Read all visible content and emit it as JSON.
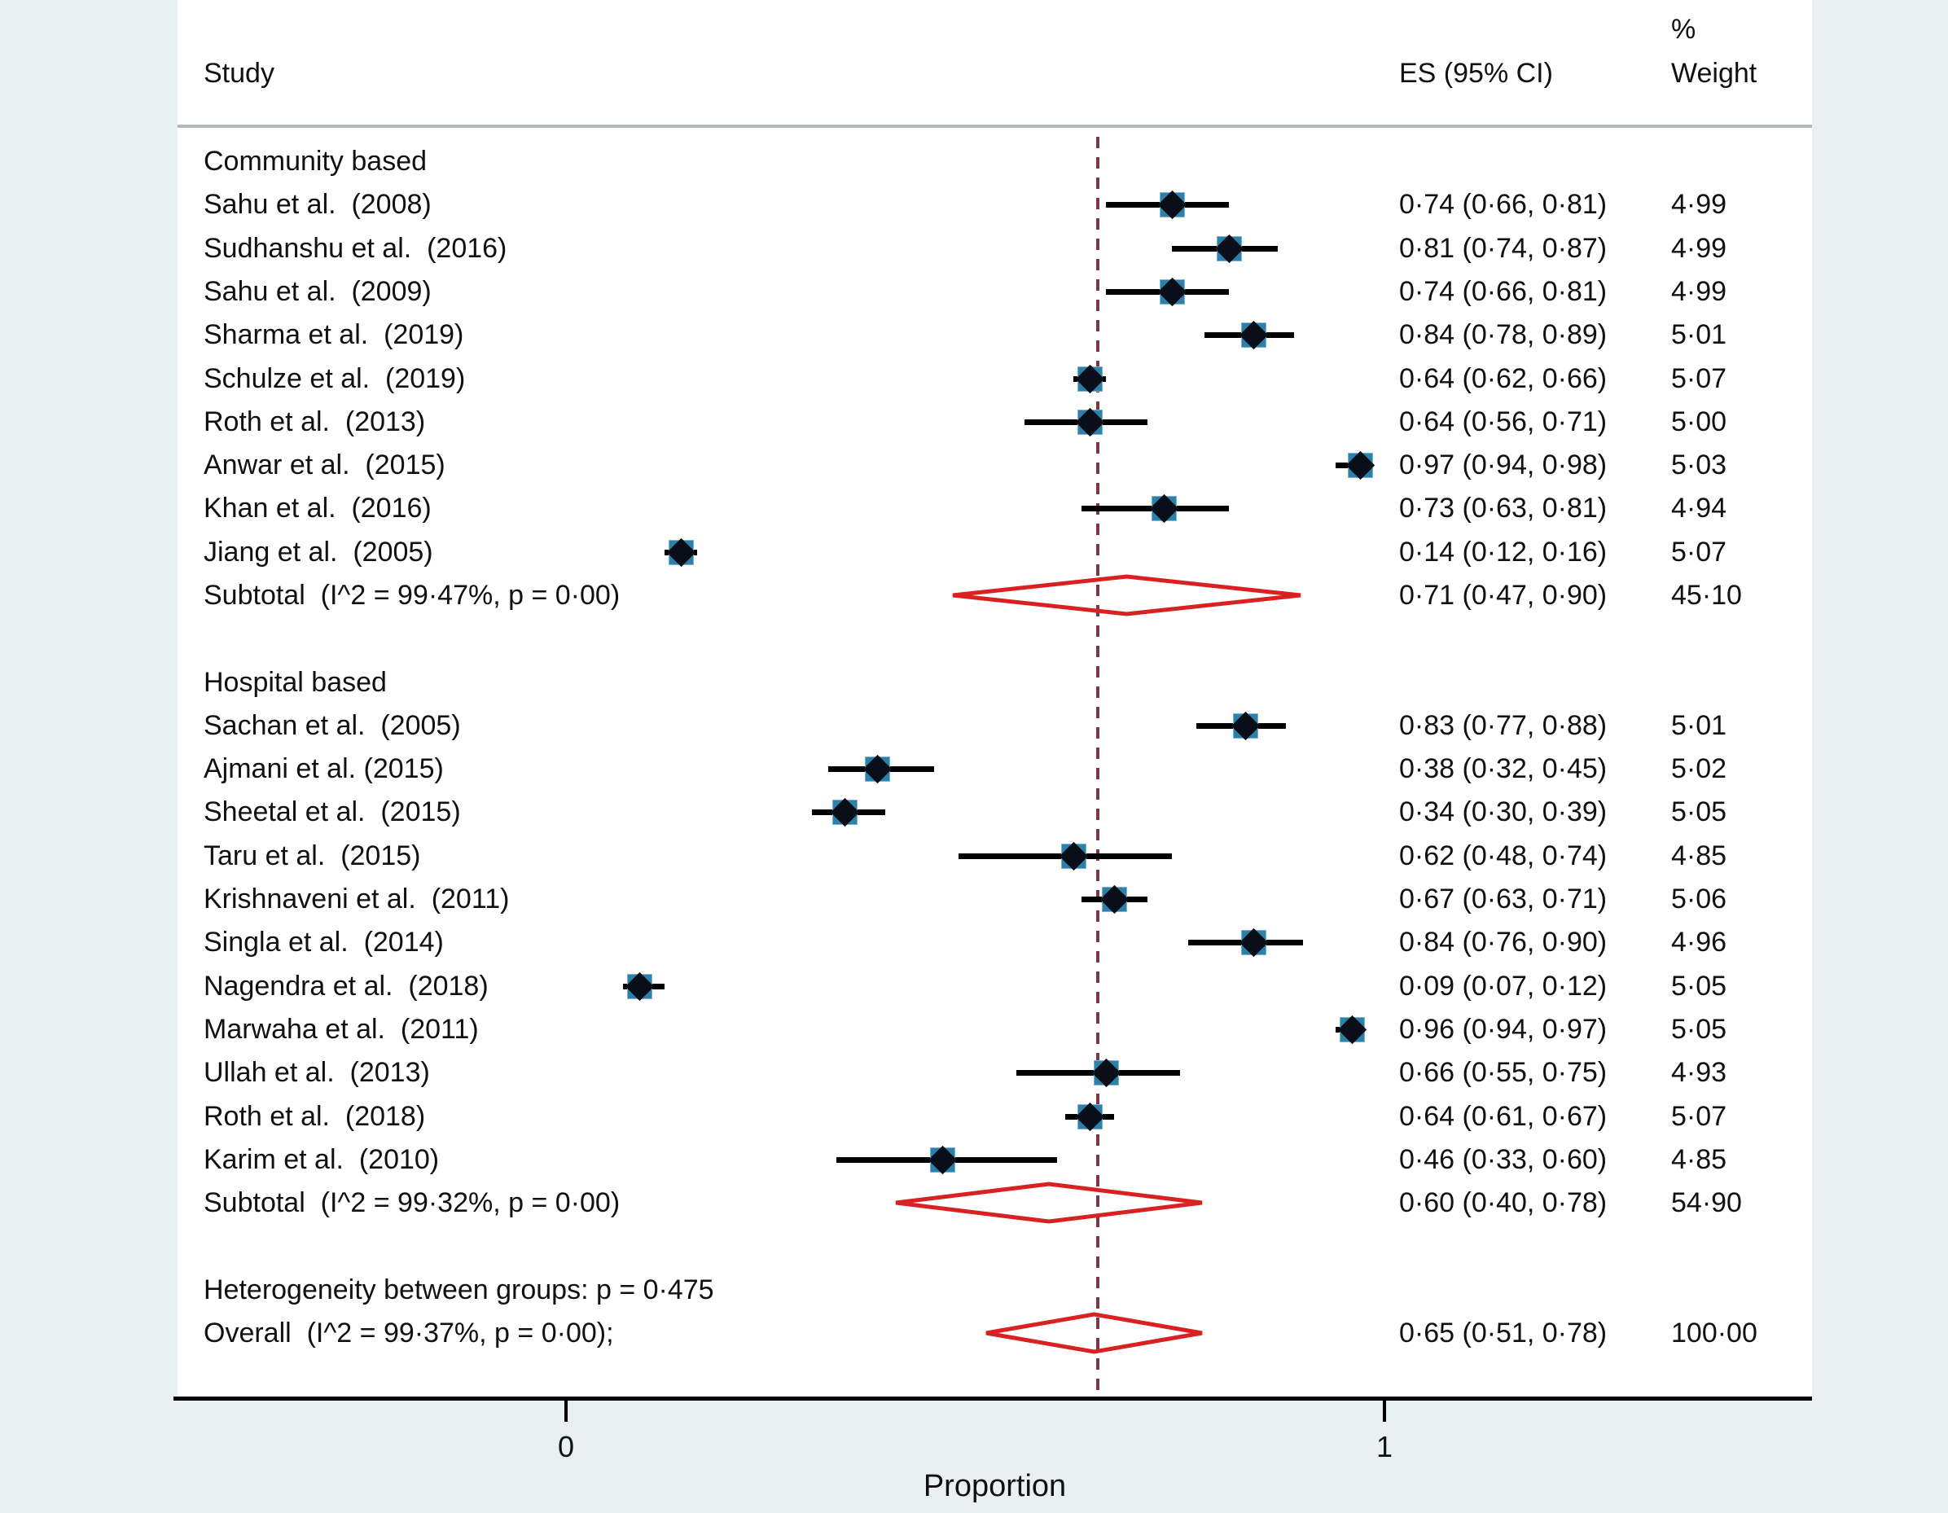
{
  "chart_data": {
    "type": "forest",
    "xlabel": "Proportion",
    "x_range": [
      0,
      1
    ],
    "x_ticks": [
      {
        "value": 0,
        "label": "0"
      },
      {
        "value": 1,
        "label": "1"
      }
    ],
    "ref_line": 0.65,
    "grid": false,
    "columns": {
      "study": "Study",
      "es": "ES (95% CI)",
      "weight_pct": "%",
      "weight": "Weight"
    },
    "colors": {
      "background": "#e9f0f2",
      "panel": "#ffffff",
      "separator": "#b5b8ba",
      "axis": "#000000",
      "marker_fill": "#2e80a8",
      "marker_border": "#7ab6d0",
      "point_marker": "#0a0e18",
      "ci_line": "#000000",
      "pooled_diamond": "#d92121",
      "ref_line": "#7d3848",
      "text": "#111111"
    },
    "groups": [
      {
        "label": "Community based",
        "studies": [
          {
            "study": "Sahu et al.  (2008)",
            "es": 0.74,
            "ci_low": 0.66,
            "ci_high": 0.81,
            "es_text": "0·74 (0·66, 0·81)",
            "weight": "4·99"
          },
          {
            "study": "Sudhanshu et al.  (2016)",
            "es": 0.81,
            "ci_low": 0.74,
            "ci_high": 0.87,
            "es_text": "0·81 (0·74, 0·87)",
            "weight": "4·99"
          },
          {
            "study": "Sahu et al.  (2009)",
            "es": 0.74,
            "ci_low": 0.66,
            "ci_high": 0.81,
            "es_text": "0·74 (0·66, 0·81)",
            "weight": "4·99"
          },
          {
            "study": "Sharma et al.  (2019)",
            "es": 0.84,
            "ci_low": 0.78,
            "ci_high": 0.89,
            "es_text": "0·84 (0·78, 0·89)",
            "weight": "5·01"
          },
          {
            "study": "Schulze et al.  (2019)",
            "es": 0.64,
            "ci_low": 0.62,
            "ci_high": 0.66,
            "es_text": "0·64 (0·62, 0·66)",
            "weight": "5·07"
          },
          {
            "study": "Roth et al.  (2013)",
            "es": 0.64,
            "ci_low": 0.56,
            "ci_high": 0.71,
            "es_text": "0·64 (0·56, 0·71)",
            "weight": "5·00"
          },
          {
            "study": "Anwar et al.  (2015)",
            "es": 0.97,
            "ci_low": 0.94,
            "ci_high": 0.98,
            "es_text": "0·97 (0·94, 0·98)",
            "weight": "5·03"
          },
          {
            "study": "Khan et al.  (2016)",
            "es": 0.73,
            "ci_low": 0.63,
            "ci_high": 0.81,
            "es_text": "0·73 (0·63, 0·81)",
            "weight": "4·94"
          },
          {
            "study": "Jiang et al.  (2005)",
            "es": 0.14,
            "ci_low": 0.12,
            "ci_high": 0.16,
            "es_text": "0·14 (0·12, 0·16)",
            "weight": "5·07"
          }
        ],
        "subtotal": {
          "study": "Subtotal  (I^2 = 99·47%, p = 0·00)",
          "es": 0.71,
          "ci_low": 0.47,
          "ci_high": 0.9,
          "es_text": "0·71 (0·47, 0·90)",
          "weight": "45·10"
        }
      },
      {
        "label": "Hospital based",
        "studies": [
          {
            "study": "Sachan et al.  (2005)",
            "es": 0.83,
            "ci_low": 0.77,
            "ci_high": 0.88,
            "es_text": "0·83 (0·77, 0·88)",
            "weight": "5·01"
          },
          {
            "study": "Ajmani et al. (2015)",
            "es": 0.38,
            "ci_low": 0.32,
            "ci_high": 0.45,
            "es_text": "0·38 (0·32, 0·45)",
            "weight": "5·02"
          },
          {
            "study": "Sheetal et al.  (2015)",
            "es": 0.34,
            "ci_low": 0.3,
            "ci_high": 0.39,
            "es_text": "0·34 (0·30, 0·39)",
            "weight": "5·05"
          },
          {
            "study": "Taru et al.  (2015)",
            "es": 0.62,
            "ci_low": 0.48,
            "ci_high": 0.74,
            "es_text": "0·62 (0·48, 0·74)",
            "weight": "4·85"
          },
          {
            "study": "Krishnaveni et al.  (2011)",
            "es": 0.67,
            "ci_low": 0.63,
            "ci_high": 0.71,
            "es_text": "0·67 (0·63, 0·71)",
            "weight": "5·06"
          },
          {
            "study": "Singla et al.  (2014)",
            "es": 0.84,
            "ci_low": 0.76,
            "ci_high": 0.9,
            "es_text": "0·84 (0·76, 0·90)",
            "weight": "4·96"
          },
          {
            "study": "Nagendra et al.  (2018)",
            "es": 0.09,
            "ci_low": 0.07,
            "ci_high": 0.12,
            "es_text": "0·09 (0·07, 0·12)",
            "weight": "5·05"
          },
          {
            "study": "Marwaha et al.  (2011)",
            "es": 0.96,
            "ci_low": 0.94,
            "ci_high": 0.97,
            "es_text": "0·96 (0·94, 0·97)",
            "weight": "5·05"
          },
          {
            "study": "Ullah et al.  (2013)",
            "es": 0.66,
            "ci_low": 0.55,
            "ci_high": 0.75,
            "es_text": "0·66 (0·55, 0·75)",
            "weight": "4·93"
          },
          {
            "study": "Roth et al.  (2018)",
            "es": 0.64,
            "ci_low": 0.61,
            "ci_high": 0.67,
            "es_text": "0·64 (0·61, 0·67)",
            "weight": "5·07"
          },
          {
            "study": "Karim et al.  (2010)",
            "es": 0.46,
            "ci_low": 0.33,
            "ci_high": 0.6,
            "es_text": "0·46 (0·33, 0·60)",
            "weight": "4·85"
          }
        ],
        "subtotal": {
          "study": "Subtotal  (I^2 = 99·32%, p = 0·00)",
          "es": 0.6,
          "ci_low": 0.4,
          "ci_high": 0.78,
          "es_text": "0·60 (0·40, 0·78)",
          "weight": "54·90"
        }
      }
    ],
    "heterogeneity_note": "Heterogeneity between groups: p = 0·475",
    "overall": {
      "study": "Overall  (I^2 = 99·37%, p = 0·00);",
      "es": 0.65,
      "ci_low": 0.51,
      "ci_high": 0.78,
      "es_text": "0·65 (0·51, 0·78)",
      "weight": "100·00"
    }
  }
}
